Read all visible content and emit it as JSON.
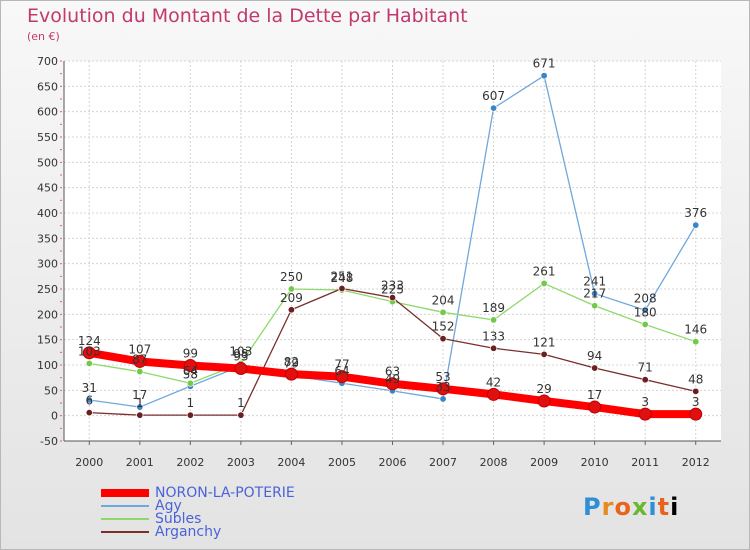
{
  "header": {
    "title": "Evolution du Montant de la Dette par Habitant",
    "subtitle": "(en €)"
  },
  "logo": {
    "text": "Proxiti"
  },
  "chart_data": {
    "type": "line",
    "categories": [
      "2000",
      "2001",
      "2002",
      "2003",
      "2004",
      "2005",
      "2006",
      "2007",
      "2008",
      "2009",
      "2010",
      "2011",
      "2012"
    ],
    "ylim": [
      -50,
      700
    ],
    "yticks": [
      -50,
      0,
      50,
      100,
      150,
      200,
      250,
      300,
      350,
      400,
      450,
      500,
      550,
      600,
      650,
      700
    ],
    "grid": true,
    "legend_position": "bottom-left",
    "series": [
      {
        "name": "NORON-LA-POTERIE",
        "color": "#ff0000",
        "marker_color": "#e01010",
        "values": [
          124,
          107,
          99,
          93,
          82,
          77,
          63,
          53,
          42,
          29,
          17,
          3,
          3
        ]
      },
      {
        "name": "Agy",
        "color": "#6fa8dc",
        "marker_color": "#3a84c8",
        "values": [
          31,
          17,
          58,
          98,
          79,
          64,
          49,
          33,
          607,
          671,
          241,
          208,
          376
        ]
      },
      {
        "name": "Subles",
        "color": "#8ed86a",
        "marker_color": "#72c94a",
        "values": [
          103,
          87,
          64,
          103,
          250,
          248,
          225,
          204,
          189,
          261,
          217,
          180,
          146
        ]
      },
      {
        "name": "Arganchy",
        "color": "#7a2e2e",
        "marker_color": "#6b1f1f",
        "values": [
          6,
          1,
          1,
          1,
          209,
          251,
          233,
          152,
          133,
          121,
          94,
          71,
          48
        ]
      }
    ]
  }
}
